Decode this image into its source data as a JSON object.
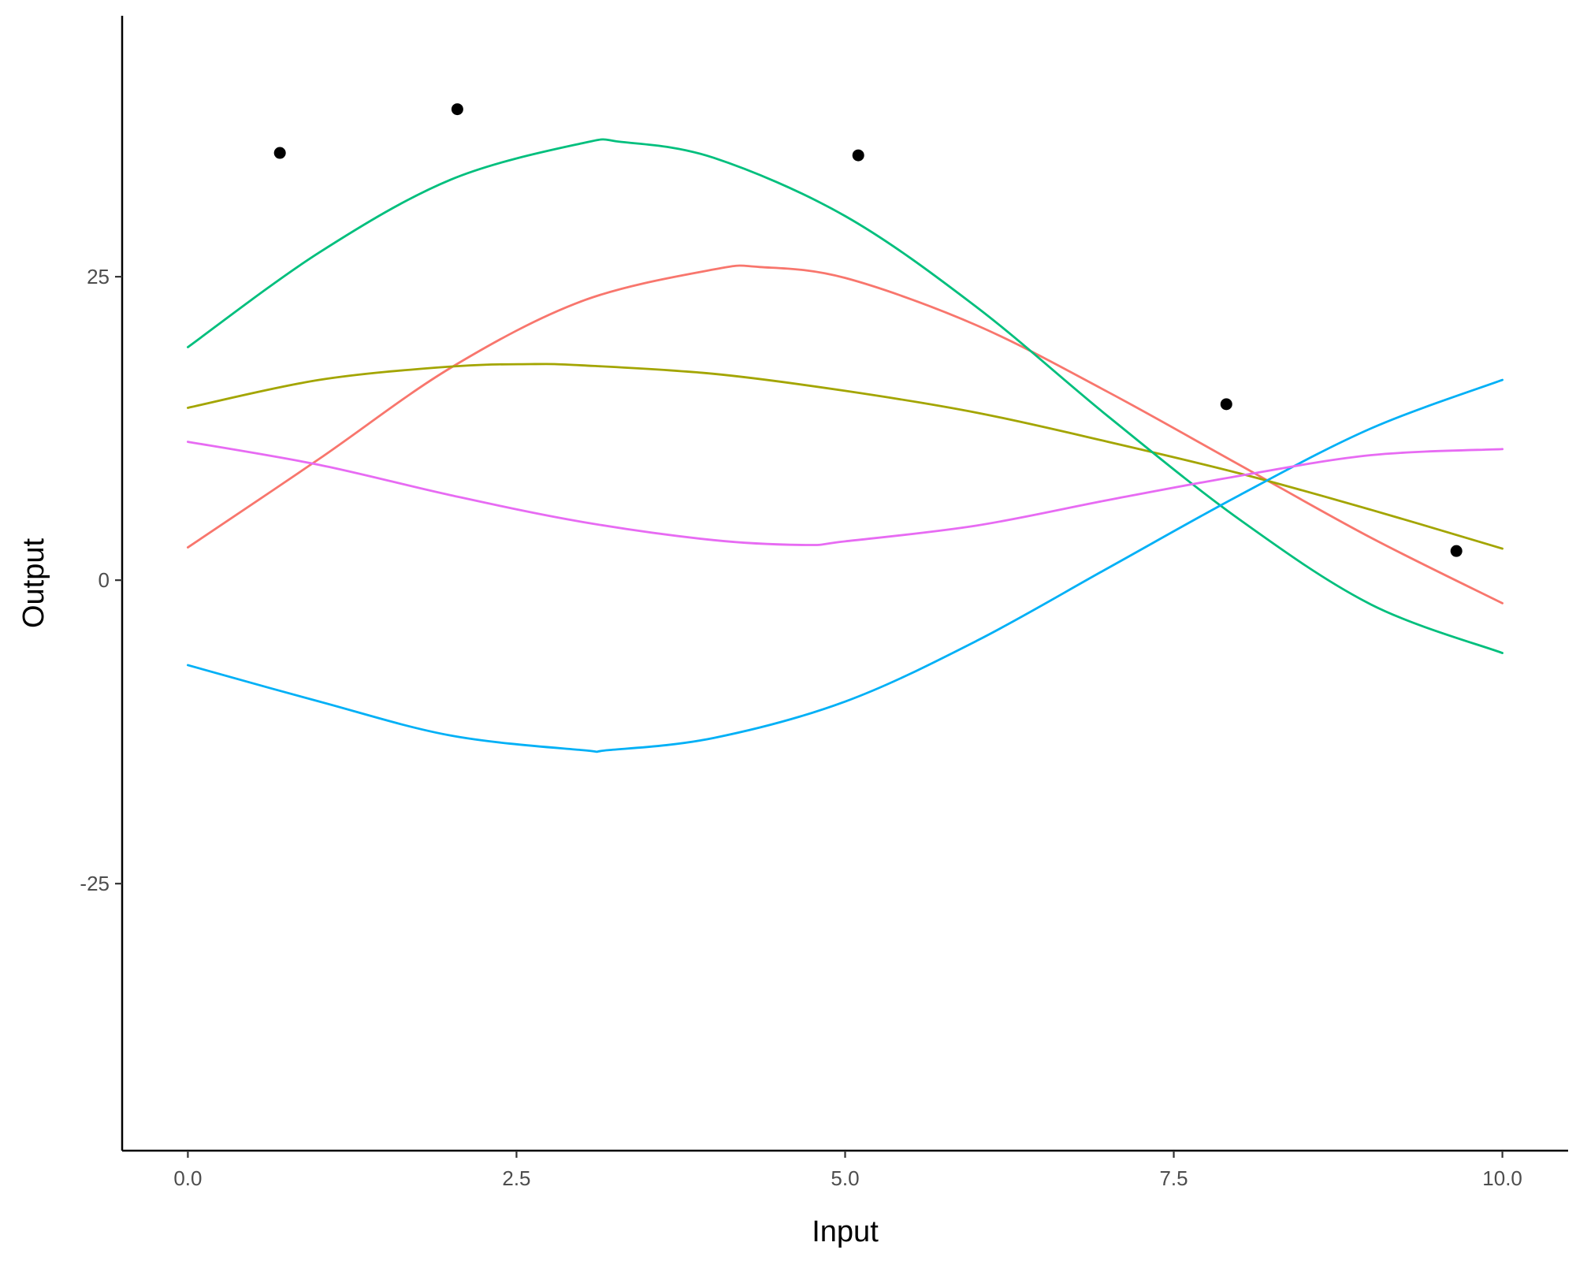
{
  "chart_data": {
    "type": "line",
    "title": "",
    "xlabel": "Input",
    "ylabel": "Output",
    "xlim": [
      -0.5,
      10.5
    ],
    "ylim": [
      -47,
      46.5
    ],
    "x_ticks": [
      0.0,
      2.5,
      5.0,
      7.5,
      10.0
    ],
    "x_tick_labels": [
      "0.0",
      "2.5",
      "5.0",
      "7.5",
      "10.0"
    ],
    "y_ticks": [
      -25,
      0,
      25
    ],
    "y_tick_labels": [
      "-25",
      "0",
      "25"
    ],
    "grid": false,
    "legend": "none",
    "points": {
      "color": "#000000",
      "x": [
        0.7,
        2.05,
        5.1,
        7.9,
        9.65
      ],
      "y": [
        35.2,
        38.8,
        35.0,
        14.5,
        2.4
      ]
    },
    "series": [
      {
        "color": "#F8766D",
        "x": [
          0,
          1,
          2,
          3,
          4,
          4.35,
          5,
          6,
          7,
          8,
          9,
          10
        ],
        "y": [
          2.7,
          10.0,
          17.5,
          23.0,
          25.6,
          25.8,
          24.9,
          21.0,
          15.5,
          9.5,
          3.5,
          -1.9
        ]
      },
      {
        "color": "#A3A500",
        "x": [
          0,
          1,
          2,
          2.6,
          3,
          4,
          5,
          6,
          7,
          8,
          9,
          10
        ],
        "y": [
          14.2,
          16.5,
          17.6,
          17.8,
          17.7,
          17.0,
          15.6,
          13.8,
          11.4,
          8.8,
          5.8,
          2.6
        ]
      },
      {
        "color": "#00BF7D",
        "x": [
          0,
          1,
          2,
          3,
          3.3,
          4,
          5,
          6,
          7,
          8,
          9,
          10
        ],
        "y": [
          19.2,
          27.0,
          33.0,
          36.0,
          36.1,
          34.8,
          30.0,
          22.5,
          13.5,
          5.0,
          -2.0,
          -6.0
        ]
      },
      {
        "color": "#00B0F6",
        "x": [
          0,
          1,
          2,
          3,
          3.2,
          4,
          5,
          6,
          7,
          8,
          9,
          10
        ],
        "y": [
          -7.0,
          -10.0,
          -12.8,
          -14.0,
          -14.0,
          -13.0,
          -10.0,
          -5.0,
          1.0,
          7.0,
          12.5,
          16.5
        ]
      },
      {
        "color": "#E76BF3",
        "x": [
          0,
          1,
          2,
          3,
          4,
          4.7,
          5,
          6,
          7,
          8,
          9,
          10
        ],
        "y": [
          11.4,
          9.5,
          7.0,
          4.8,
          3.3,
          2.9,
          3.2,
          4.5,
          6.6,
          8.6,
          10.3,
          10.8
        ]
      }
    ]
  }
}
